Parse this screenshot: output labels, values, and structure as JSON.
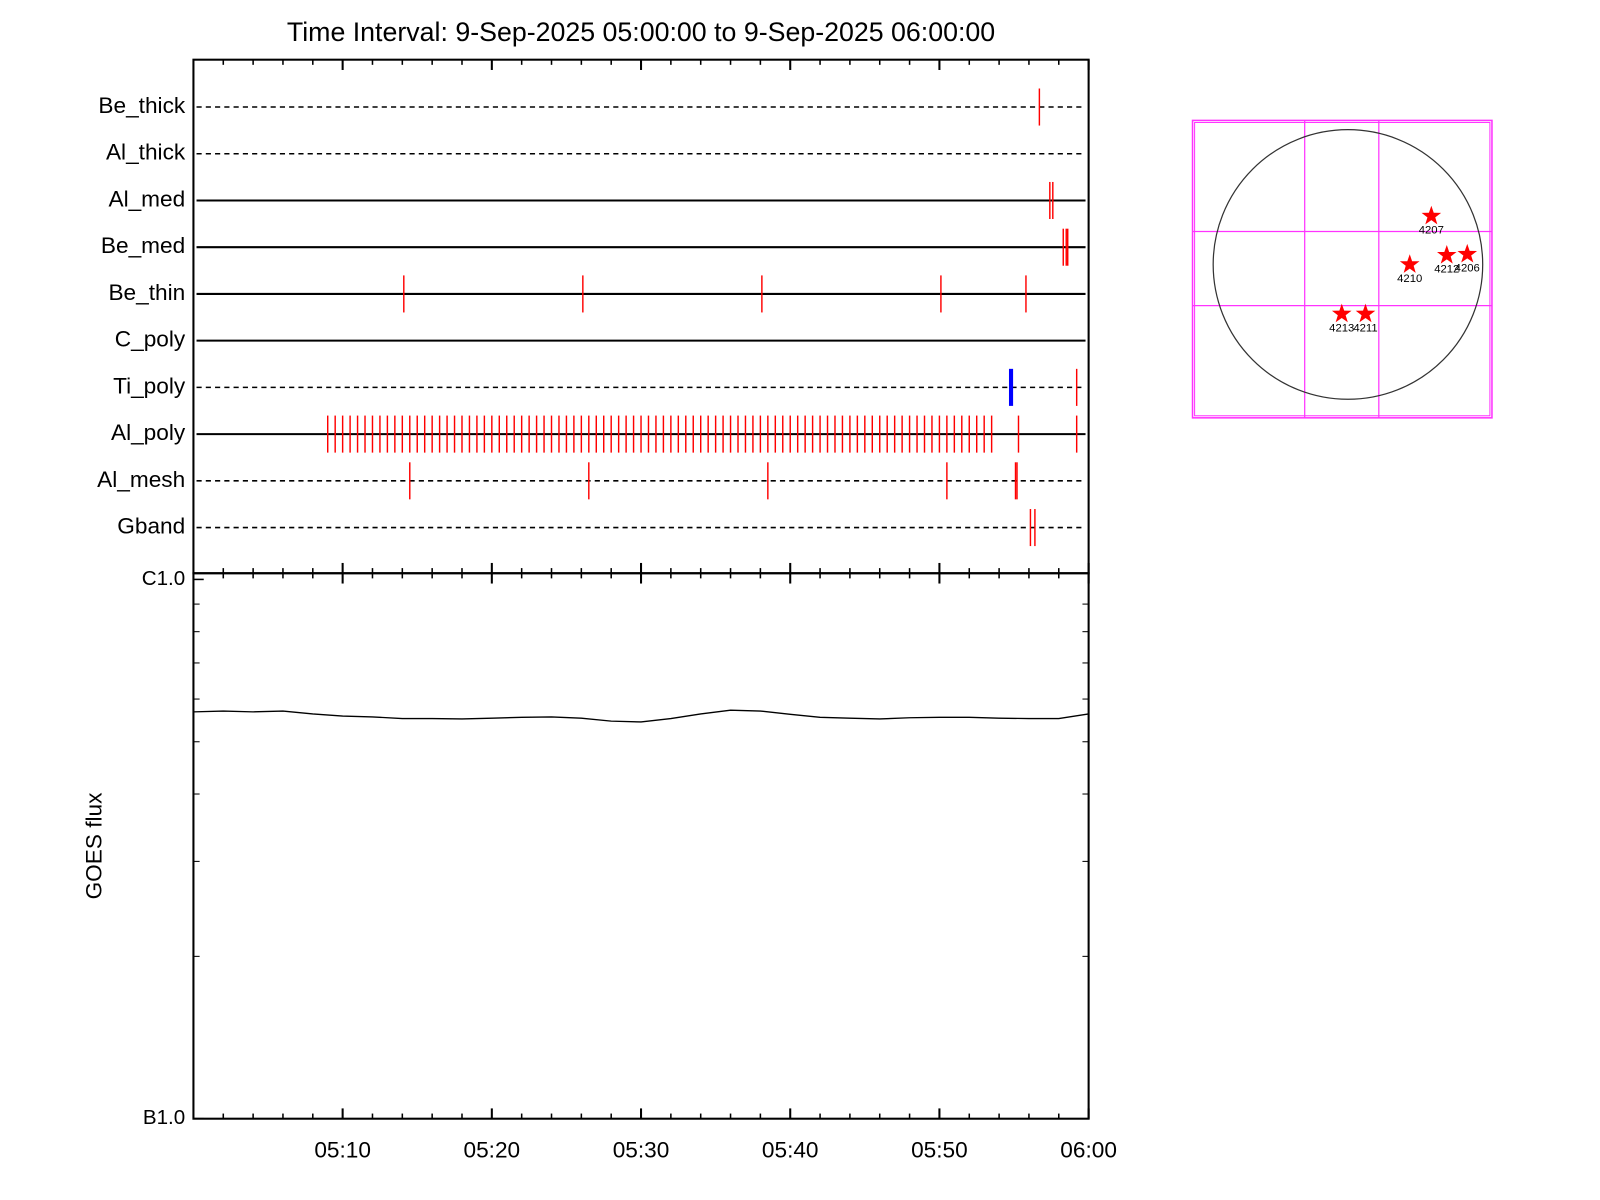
{
  "chart_data": [
    {
      "type": "timeline",
      "title": "Time Interval:  9-Sep-2025 05:00:00 to  9-Sep-2025 06:00:00",
      "xlim": [
        0,
        60
      ],
      "xticks": [
        10,
        20,
        30,
        40,
        50,
        60
      ],
      "xminorticks": [
        2,
        4,
        6,
        8,
        12,
        14,
        16,
        18,
        22,
        24,
        26,
        28,
        32,
        34,
        36,
        38,
        42,
        44,
        46,
        48,
        52,
        54,
        56,
        58
      ],
      "color": "#ff0000",
      "rows": [
        {
          "name": "Be_thick",
          "line": "dashed",
          "events": [
            56.7
          ]
        },
        {
          "name": "Al_thick",
          "line": "dashed",
          "events": []
        },
        {
          "name": "Al_med",
          "line": "solid",
          "events": [
            57.4,
            57.6
          ]
        },
        {
          "name": "Be_med",
          "line": "solid",
          "events": [
            58.3,
            58.5,
            58.6
          ]
        },
        {
          "name": "Be_thin",
          "line": "solid",
          "events": [
            14.1,
            26.1,
            38.1,
            50.1,
            55.8
          ]
        },
        {
          "name": "C_poly",
          "line": "solid",
          "events": []
        },
        {
          "name": "Ti_poly",
          "line": "dashed",
          "events": [
            54.8,
            59.2
          ],
          "event_colors": [
            "#0000ff",
            "#ff0000"
          ]
        },
        {
          "name": "Al_poly",
          "line": "solid",
          "events": [
            9,
            9.5,
            10,
            10.5,
            11,
            11.5,
            12,
            12.5,
            13,
            13.5,
            14,
            14.5,
            15,
            15.5,
            16,
            16.5,
            17,
            17.5,
            18,
            18.5,
            19,
            19.5,
            20,
            20.5,
            21,
            21.5,
            22,
            22.5,
            23,
            23.5,
            24,
            24.5,
            25,
            25.5,
            26,
            26.5,
            27,
            27.5,
            28,
            28.5,
            29,
            29.5,
            30,
            30.5,
            31,
            31.5,
            32,
            32.5,
            33,
            33.5,
            34,
            34.5,
            35,
            35.5,
            36,
            36.5,
            37,
            37.5,
            38,
            38.5,
            39,
            39.5,
            40,
            40.5,
            41,
            41.5,
            42,
            42.5,
            43,
            43.5,
            44,
            44.5,
            45,
            45.5,
            46,
            46.5,
            47,
            47.5,
            48,
            48.5,
            49,
            49.5,
            50,
            50.5,
            51,
            51.5,
            52,
            52.5,
            53,
            53.5,
            55.3,
            59.2
          ]
        },
        {
          "name": "Al_mesh",
          "line": "dashed",
          "events": [
            14.5,
            26.5,
            38.5,
            50.5,
            55.1,
            55.2
          ]
        },
        {
          "name": "Gband",
          "line": "dashed",
          "events": [
            56.1,
            56.4
          ]
        }
      ]
    },
    {
      "type": "line",
      "ylabel": "GOES flux",
      "log_y": true,
      "color": "#000000",
      "xlim": [
        0,
        60
      ],
      "xticks": [
        {
          "value": 10,
          "label": "05:10"
        },
        {
          "value": 20,
          "label": "05:20"
        },
        {
          "value": 30,
          "label": "05:30"
        },
        {
          "value": 40,
          "label": "05:40"
        },
        {
          "value": 50,
          "label": "05:50"
        },
        {
          "value": 60,
          "label": "06:00"
        }
      ],
      "xminorticks": [
        2,
        4,
        6,
        8,
        12,
        14,
        16,
        18,
        22,
        24,
        26,
        28,
        32,
        34,
        36,
        38,
        42,
        44,
        46,
        48,
        52,
        54,
        56,
        58
      ],
      "ylim": [
        1e-06,
        1e-05
      ],
      "yticks": [
        {
          "value": 1e-06,
          "label": "B1.0"
        },
        {
          "value": 1e-05,
          "label": "C1.0"
        }
      ],
      "yminorticks": [
        2e-06,
        3e-06,
        4e-06,
        5e-06,
        6e-06,
        7e-06,
        8e-06,
        9e-06
      ],
      "x": [
        0,
        2,
        4,
        6,
        8,
        10,
        12,
        14,
        16,
        18,
        20,
        22,
        24,
        26,
        28,
        30,
        32,
        34,
        36,
        38,
        40,
        42,
        44,
        46,
        48,
        50,
        52,
        54,
        56,
        58,
        60
      ],
      "values": [
        5.68e-06,
        5.7e-06,
        5.68e-06,
        5.7e-06,
        5.63e-06,
        5.58e-06,
        5.56e-06,
        5.52e-06,
        5.52e-06,
        5.51e-06,
        5.53e-06,
        5.55e-06,
        5.56e-06,
        5.53e-06,
        5.46e-06,
        5.44e-06,
        5.52e-06,
        5.63e-06,
        5.72e-06,
        5.7e-06,
        5.62e-06,
        5.55e-06,
        5.53e-06,
        5.51e-06,
        5.54e-06,
        5.55e-06,
        5.55e-06,
        5.53e-06,
        5.52e-06,
        5.52e-06,
        5.63e-06
      ]
    },
    {
      "type": "map",
      "xlim": [
        -1107,
        1026
      ],
      "ylim": [
        -1092,
        1026
      ],
      "radius": 960,
      "xgrid": [
        -308,
        220
      ],
      "ygrid": [
        235,
        -293
      ],
      "grid_color": "#ff33ff",
      "color": "#ff0000",
      "names": [
        "4207",
        "4210",
        "4212",
        "4206",
        "4213",
        "4211"
      ],
      "x": [
        594,
        440,
        704,
        850,
        -44,
        125
      ],
      "y": [
        345,
        0,
        66,
        73,
        -352,
        -352
      ]
    }
  ]
}
